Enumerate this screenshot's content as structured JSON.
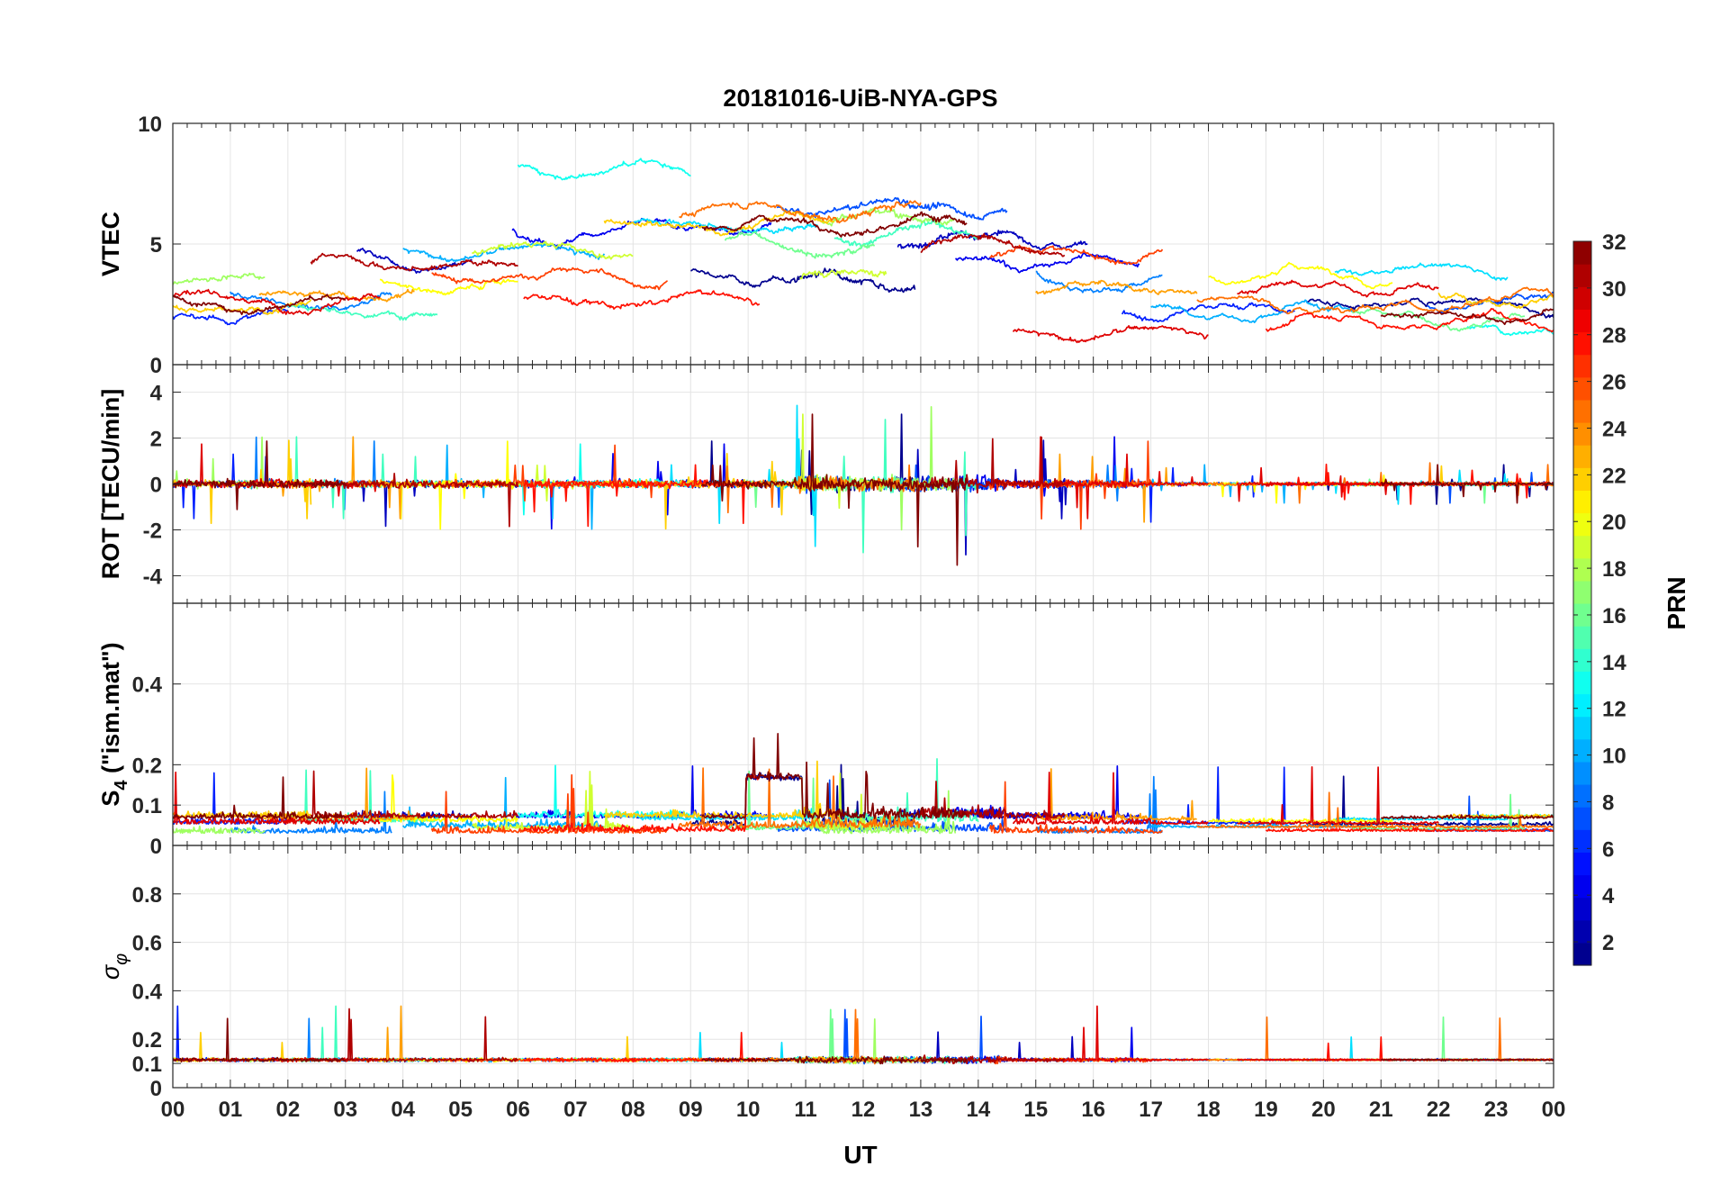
{
  "chart_data": {
    "type": "line",
    "title": "20181016-UiB-NYA-GPS",
    "xlabel": "UT",
    "x_ticks": [
      "00",
      "01",
      "02",
      "03",
      "04",
      "05",
      "06",
      "07",
      "08",
      "09",
      "10",
      "11",
      "12",
      "13",
      "14",
      "15",
      "16",
      "17",
      "18",
      "19",
      "20",
      "21",
      "22",
      "23",
      "00"
    ],
    "xlim": [
      0,
      24
    ],
    "grid": true,
    "panels": [
      {
        "key": "vtec",
        "ylabel": "VTEC",
        "ylim": [
          0,
          10
        ],
        "yticks": [
          0,
          5,
          10
        ],
        "ytick_labels": [
          "0",
          "5",
          "10"
        ]
      },
      {
        "key": "rot",
        "ylabel": "ROT [TECU/min]",
        "ylim": [
          -5.2,
          5.2
        ],
        "yticks": [
          -4,
          -2,
          0,
          2,
          4
        ],
        "ytick_labels": [
          "-4",
          "-2",
          "0",
          "2",
          "4"
        ]
      },
      {
        "key": "s4",
        "ylabel_main": "S",
        "ylabel_sub": "4",
        "ylabel_rest": " (\"ism.mat\")",
        "ylim": [
          0,
          0.6
        ],
        "yticks": [
          0,
          0.1,
          0.2,
          0.4
        ],
        "ytick_labels": [
          "0",
          "0.1",
          "0.2",
          "0.4"
        ]
      },
      {
        "key": "sigma_phi",
        "ylabel_main": "σ",
        "ylabel_sub": "φ",
        "ylim": [
          0,
          1
        ],
        "yticks": [
          0,
          0.1,
          0.2,
          0.4,
          0.6,
          0.8
        ],
        "ytick_labels": [
          "0",
          "0.1",
          "0.2",
          "0.4",
          "0.6",
          "0.8"
        ]
      }
    ],
    "colorbar": {
      "label": "PRN",
      "range": [
        1,
        32
      ],
      "ticks": [
        2,
        4,
        6,
        8,
        10,
        12,
        14,
        16,
        18,
        20,
        22,
        24,
        26,
        28,
        30,
        32
      ],
      "colormap": "jet",
      "levels": 32
    },
    "series": [
      {
        "name": "PRN 1",
        "prn": 1,
        "color": "#00008f",
        "segments": [
          [
            9.0,
            12.9,
            3.6
          ],
          [
            19.7,
            24.0,
            2.4
          ]
        ]
      },
      {
        "name": "PRN 2",
        "prn": 2,
        "color": "#0000bf",
        "segments": [
          [
            3.2,
            5.2,
            4.4
          ],
          [
            12.6,
            15.9,
            5.2
          ]
        ]
      },
      {
        "name": "PRN 3",
        "prn": 3,
        "color": "#0000ef",
        "segments": [
          [
            5.9,
            10.4,
            5.6
          ],
          [
            13.6,
            16.8,
            4.2
          ]
        ]
      },
      {
        "name": "PRN 4",
        "prn": 4,
        "color": "#001fff",
        "segments": [
          [
            0.0,
            2.0,
            2.0
          ],
          [
            16.5,
            19.5,
            2.2
          ]
        ]
      },
      {
        "name": "PRN 5",
        "prn": 5,
        "color": "#004fff",
        "segments": [
          [
            10.5,
            14.5,
            6.5
          ],
          [
            21.8,
            24.0,
            2.6
          ]
        ]
      },
      {
        "name": "PRN 6",
        "prn": 6,
        "color": "#007fff",
        "segments": [
          [
            1.0,
            3.8,
            2.8
          ],
          [
            15.0,
            17.2,
            3.6
          ]
        ]
      },
      {
        "name": "PRN 7",
        "prn": 7,
        "color": "#00afff",
        "segments": [
          [
            4.0,
            7.5,
            4.6
          ],
          [
            17.0,
            20.5,
            2.2
          ]
        ]
      },
      {
        "name": "PRN 8",
        "prn": 8,
        "color": "#00dfff",
        "segments": [
          [
            8.0,
            11.2,
            5.8
          ],
          [
            20.2,
            23.2,
            3.8
          ]
        ]
      },
      {
        "name": "PRN 9",
        "prn": 9,
        "color": "#10ffef",
        "segments": [
          [
            6.0,
            9.0,
            8.2
          ],
          [
            22.5,
            24.0,
            1.6
          ]
        ]
      },
      {
        "name": "PRN 10",
        "prn": 10,
        "color": "#40ffbf",
        "segments": [
          [
            2.0,
            4.6,
            2.2
          ],
          [
            11.5,
            14.0,
            5.4
          ]
        ]
      },
      {
        "name": "PRN 11",
        "prn": 11,
        "color": "#70ff8f",
        "segments": [
          [
            9.6,
            12.2,
            5.0
          ],
          [
            20.5,
            23.5,
            2.0
          ]
        ]
      },
      {
        "name": "PRN 12",
        "prn": 12,
        "color": "#9fff60",
        "segments": [
          [
            0.0,
            1.6,
            3.6
          ],
          [
            11.2,
            13.6,
            6.2
          ]
        ]
      },
      {
        "name": "PRN 13",
        "prn": 13,
        "color": "#cfff30",
        "segments": [
          [
            5.2,
            8.0,
            4.8
          ],
          [
            10.9,
            12.4,
            3.8
          ]
        ]
      },
      {
        "name": "PRN 14",
        "prn": 14,
        "color": "#ffff00",
        "segments": [
          [
            3.6,
            6.0,
            3.4
          ],
          [
            18.0,
            21.2,
            3.8
          ]
        ]
      },
      {
        "name": "PRN 15",
        "prn": 15,
        "color": "#ffcf00",
        "segments": [
          [
            0.0,
            2.4,
            2.2
          ],
          [
            7.5,
            11.5,
            6.0
          ],
          [
            22.0,
            24.0,
            2.8
          ]
        ]
      },
      {
        "name": "PRN 16",
        "prn": 16,
        "color": "#ff9f00",
        "segments": [
          [
            1.5,
            4.2,
            3.0
          ],
          [
            15.0,
            17.8,
            3.2
          ]
        ]
      },
      {
        "name": "PRN 17",
        "prn": 17,
        "color": "#ff6f00",
        "segments": [
          [
            8.8,
            13.0,
            6.4
          ],
          [
            17.8,
            24.0,
            2.6
          ]
        ]
      },
      {
        "name": "PRN 18",
        "prn": 18,
        "color": "#ff3f00",
        "segments": [
          [
            4.5,
            8.6,
            3.6
          ],
          [
            14.2,
            17.2,
            4.6
          ]
        ]
      },
      {
        "name": "PRN 19",
        "prn": 19,
        "color": "#ff1000",
        "segments": [
          [
            6.1,
            10.2,
            2.6
          ],
          [
            19.0,
            24.0,
            1.8
          ]
        ]
      },
      {
        "name": "PRN 20",
        "prn": 20,
        "color": "#df0000",
        "segments": [
          [
            0.0,
            3.6,
            2.8
          ],
          [
            14.6,
            18.0,
            1.2
          ],
          [
            18.5,
            22.0,
            3.2
          ]
        ]
      },
      {
        "name": "PRN 21",
        "prn": 21,
        "color": "#af0000",
        "segments": [
          [
            2.4,
            6.0,
            4.2
          ],
          [
            13.0,
            15.5,
            4.8
          ]
        ]
      },
      {
        "name": "PRN 22",
        "prn": 22,
        "color": "#800000",
        "segments": [
          [
            0.0,
            3.0,
            2.6
          ],
          [
            9.2,
            13.8,
            6.0
          ],
          [
            21.0,
            24.0,
            2.0
          ]
        ]
      }
    ]
  }
}
